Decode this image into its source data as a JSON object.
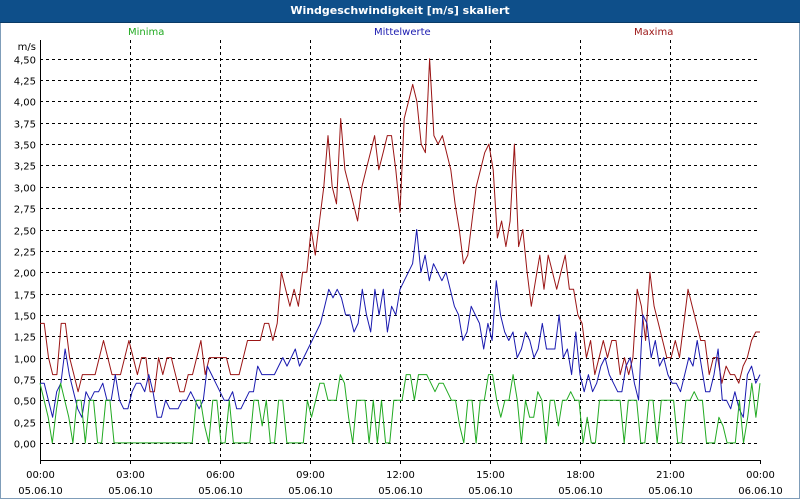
{
  "window": {
    "title": "Windgeschwindigkeit [m/s] skaliert"
  },
  "legend": {
    "minima": "Minima",
    "mittelwerte": "Mittelwerte",
    "maxima": "Maxima"
  },
  "colors": {
    "minima": "#22aa22",
    "mittelwerte": "#1a1ab0",
    "maxima": "#9b1515",
    "titlebar": "#0e4f8a",
    "grid": "#000000"
  },
  "chart_data": {
    "type": "line",
    "title": "Windgeschwindigkeit [m/s] skaliert",
    "ylabel": "m/s",
    "xlabel": "",
    "ylim": [
      -0.2,
      4.72
    ],
    "xlim": [
      0,
      24
    ],
    "yticks": [
      "0,00",
      "0,25",
      "0,50",
      "0,75",
      "1,00",
      "1,25",
      "1,50",
      "1,75",
      "2,00",
      "2,25",
      "2,50",
      "2,75",
      "3,00",
      "3,25",
      "3,50",
      "3,75",
      "4,00",
      "4,25",
      "4,50"
    ],
    "ytick_values": [
      0,
      0.25,
      0.5,
      0.75,
      1,
      1.25,
      1.5,
      1.75,
      2,
      2.25,
      2.5,
      2.75,
      3,
      3.25,
      3.5,
      3.75,
      4,
      4.25,
      4.5
    ],
    "xticks": [
      {
        "time": "00:00",
        "date": "05.06.10",
        "hour": 0
      },
      {
        "time": "03:00",
        "date": "05.06.10",
        "hour": 3
      },
      {
        "time": "06:00",
        "date": "05.06.10",
        "hour": 6
      },
      {
        "time": "09:00",
        "date": "05.06.10",
        "hour": 9
      },
      {
        "time": "12:00",
        "date": "05.06.10",
        "hour": 12
      },
      {
        "time": "15:00",
        "date": "05.06.10",
        "hour": 15
      },
      {
        "time": "18:00",
        "date": "05.06.10",
        "hour": 18
      },
      {
        "time": "21:00",
        "date": "05.06.10",
        "hour": 21
      },
      {
        "time": "00:00",
        "date": "06.06.10",
        "hour": 24
      }
    ],
    "x_step_hours": 0.1667,
    "series": [
      {
        "name": "Maxima",
        "color": "#9b1515",
        "values": [
          1.4,
          1.4,
          1.0,
          0.8,
          0.8,
          1.4,
          1.4,
          1.0,
          0.8,
          0.6,
          0.8,
          0.8,
          0.8,
          0.8,
          1.0,
          1.2,
          1.0,
          0.8,
          0.8,
          0.8,
          1.0,
          1.2,
          1.0,
          0.8,
          1.0,
          1.0,
          0.6,
          0.6,
          1.0,
          0.8,
          1.0,
          1.0,
          0.8,
          0.6,
          0.6,
          0.8,
          0.8,
          1.0,
          1.2,
          0.8,
          1.0,
          1.0,
          1.0,
          1.0,
          1.0,
          0.8,
          0.8,
          0.8,
          1.0,
          1.2,
          1.2,
          1.2,
          1.2,
          1.4,
          1.4,
          1.2,
          1.4,
          2.0,
          1.8,
          1.6,
          1.8,
          1.6,
          2.0,
          2.0,
          2.5,
          2.2,
          2.6,
          3.0,
          3.6,
          3.0,
          2.8,
          3.8,
          3.2,
          3.0,
          2.8,
          2.6,
          3.0,
          3.2,
          3.4,
          3.6,
          3.2,
          3.4,
          3.6,
          3.6,
          3.2,
          2.7,
          3.8,
          4.0,
          4.2,
          4.0,
          3.5,
          3.4,
          4.5,
          3.6,
          3.5,
          3.6,
          3.4,
          3.2,
          2.8,
          2.5,
          2.1,
          2.2,
          2.6,
          3.0,
          3.2,
          3.4,
          3.5,
          3.2,
          2.4,
          2.6,
          2.3,
          2.6,
          3.5,
          2.3,
          2.5,
          2.0,
          1.6,
          1.9,
          2.2,
          1.8,
          2.2,
          2.0,
          1.8,
          2.0,
          2.2,
          1.8,
          1.8,
          1.5,
          1.4,
          1.0,
          1.2,
          0.8,
          1.0,
          1.2,
          1.0,
          1.2,
          1.2,
          0.8,
          1.0,
          0.8,
          1.0,
          1.8,
          1.6,
          1.2,
          2.0,
          1.6,
          1.4,
          1.2,
          1.0,
          1.0,
          1.2,
          1.0,
          1.4,
          1.8,
          1.6,
          1.4,
          1.2,
          1.2,
          0.8,
          1.0,
          1.0,
          0.7,
          0.9,
          0.8,
          0.8,
          0.7,
          0.9,
          1.0,
          1.2,
          1.3,
          1.3
        ]
      },
      {
        "name": "Mittelwerte",
        "color": "#1a1ab0",
        "values": [
          0.7,
          0.7,
          0.5,
          0.3,
          0.6,
          0.7,
          1.1,
          0.8,
          0.6,
          0.4,
          0.3,
          0.6,
          0.5,
          0.6,
          0.6,
          0.7,
          0.5,
          0.5,
          0.8,
          0.5,
          0.4,
          0.4,
          0.6,
          0.7,
          0.7,
          0.6,
          0.8,
          0.6,
          0.3,
          0.3,
          0.5,
          0.4,
          0.4,
          0.4,
          0.5,
          0.5,
          0.6,
          0.5,
          0.4,
          0.5,
          0.9,
          0.8,
          0.7,
          0.6,
          0.5,
          0.5,
          0.6,
          0.4,
          0.4,
          0.5,
          0.6,
          0.6,
          0.9,
          0.8,
          0.8,
          0.8,
          0.8,
          0.9,
          1.0,
          0.9,
          1.0,
          1.1,
          0.9,
          1.0,
          1.1,
          1.2,
          1.3,
          1.4,
          1.6,
          1.8,
          1.7,
          1.8,
          1.7,
          1.5,
          1.5,
          1.3,
          1.4,
          1.8,
          1.5,
          1.3,
          1.8,
          1.5,
          1.8,
          1.3,
          1.6,
          1.5,
          1.8,
          1.9,
          2.0,
          2.1,
          2.5,
          2.0,
          2.2,
          1.9,
          2.1,
          2.0,
          1.9,
          2.0,
          1.8,
          1.6,
          1.5,
          1.2,
          1.3,
          1.6,
          1.5,
          1.4,
          1.1,
          1.4,
          1.2,
          1.9,
          1.5,
          1.3,
          1.2,
          1.3,
          1.0,
          1.1,
          1.3,
          1.2,
          1.0,
          1.1,
          1.4,
          1.1,
          1.1,
          1.1,
          1.5,
          1.0,
          1.1,
          0.8,
          1.3,
          0.8,
          0.6,
          0.8,
          0.6,
          0.7,
          0.9,
          1.0,
          0.8,
          0.7,
          0.6,
          0.6,
          0.9,
          1.0,
          0.7,
          0.5,
          1.5,
          1.4,
          1.0,
          1.2,
          0.9,
          1.0,
          0.8,
          0.7,
          0.7,
          0.6,
          0.8,
          1.0,
          0.9,
          1.2,
          0.9,
          0.6,
          0.6,
          0.8,
          1.1,
          0.5,
          0.5,
          0.4,
          0.6,
          0.4,
          0.3,
          0.8,
          0.9,
          0.7,
          0.8
        ]
      },
      {
        "name": "Minima",
        "color": "#22aa22",
        "values": [
          0.7,
          0.5,
          0.3,
          0.0,
          0.4,
          0.7,
          0.5,
          0.3,
          0.0,
          0.5,
          0.5,
          0.0,
          0.5,
          0.5,
          0.0,
          0.0,
          0.5,
          0.5,
          0.0,
          0.0,
          0.0,
          0.0,
          0.0,
          0.0,
          0.0,
          0.0,
          0.0,
          0.0,
          0.0,
          0.0,
          0.0,
          0.0,
          0.0,
          0.0,
          0.0,
          0.0,
          0.0,
          0.0,
          0.5,
          0.5,
          0.2,
          0.0,
          0.5,
          0.5,
          0.0,
          0.0,
          0.5,
          0.0,
          0.0,
          0.0,
          0.0,
          0.0,
          0.5,
          0.5,
          0.2,
          0.5,
          0.0,
          0.0,
          0.5,
          0.5,
          0.0,
          0.0,
          0.0,
          0.0,
          0.0,
          0.5,
          0.3,
          0.5,
          0.7,
          0.7,
          0.5,
          0.5,
          0.5,
          0.8,
          0.7,
          0.3,
          0.0,
          0.5,
          0.5,
          0.5,
          0.0,
          0.5,
          0.0,
          0.5,
          0.0,
          0.0,
          0.5,
          0.5,
          0.5,
          0.8,
          0.8,
          0.5,
          0.8,
          0.8,
          0.8,
          0.7,
          0.6,
          0.7,
          0.7,
          0.6,
          0.5,
          0.5,
          0.2,
          0.0,
          0.5,
          0.5,
          0.0,
          0.5,
          0.5,
          0.8,
          0.8,
          0.5,
          0.3,
          0.5,
          0.5,
          0.8,
          0.5,
          0.0,
          0.5,
          0.3,
          0.3,
          0.6,
          0.5,
          0.0,
          0.5,
          0.5,
          0.2,
          0.5,
          0.5,
          0.6,
          0.5,
          0.5,
          0.0,
          0.3,
          0.0,
          0.0,
          0.5,
          0.5,
          0.5,
          0.5,
          0.5,
          0.5,
          0.0,
          0.5,
          0.5,
          0.5,
          0.0,
          0.0,
          0.5,
          0.5,
          0.0,
          0.5,
          0.5,
          0.5,
          0.5,
          0.0,
          0.0,
          0.5,
          0.5,
          0.6,
          0.5,
          0.5,
          0.0,
          0.0,
          0.0,
          0.3,
          0.2,
          0.0,
          0.0,
          0.0,
          0.5,
          0.0,
          0.3,
          0.7,
          0.3,
          0.7
        ]
      }
    ]
  }
}
